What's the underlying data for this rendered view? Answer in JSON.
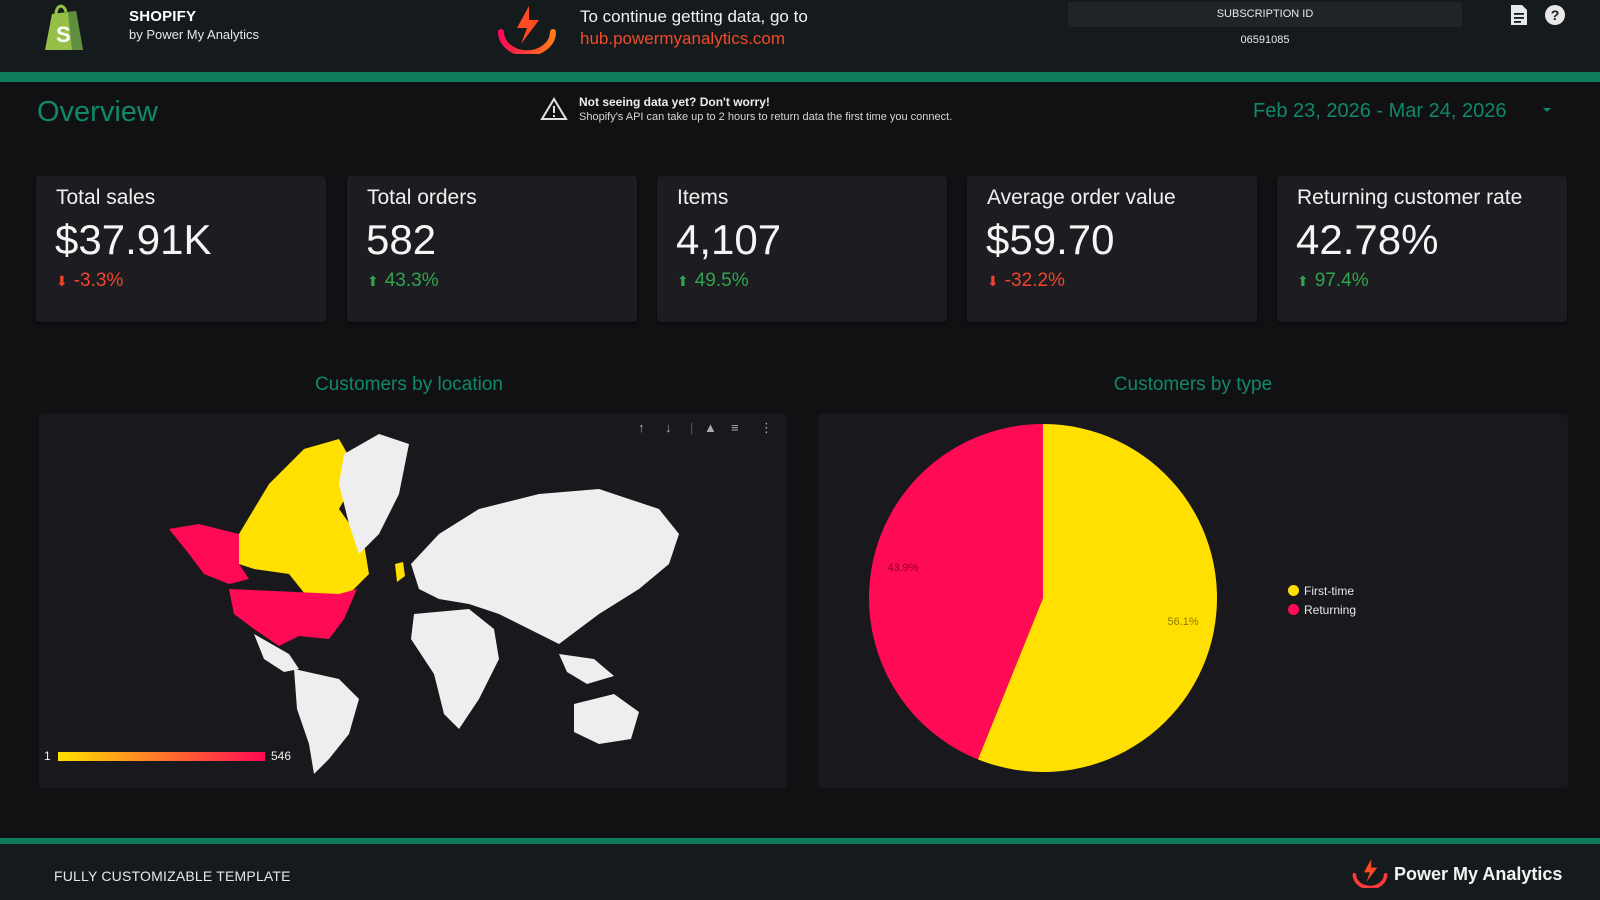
{
  "header": {
    "brand_title": "SHOPIFY",
    "brand_sub": "by Power My Analytics",
    "cta_line": "To continue getting data, go to",
    "cta_link": "hub.powermyanalytics.com",
    "subscription_label": "SUBSCRIPTION ID",
    "subscription_id": "06591085"
  },
  "overview": {
    "title": "Overview",
    "warning_title": "Not seeing data yet? Don't worry!",
    "warning_body": "Shopify's API can take up to 2 hours to return data the first time you connect.",
    "date_range": "Feb 23, 2026 - Mar 24, 2026"
  },
  "kpis": [
    {
      "label": "Total sales",
      "value": "$37.91K",
      "delta": "-3.3%",
      "direction": "down"
    },
    {
      "label": "Total orders",
      "value": "582",
      "delta": "43.3%",
      "direction": "up"
    },
    {
      "label": "Items",
      "value": "4,107",
      "delta": "49.5%",
      "direction": "up"
    },
    {
      "label": "Average order value",
      "value": "$59.70",
      "delta": "-32.2%",
      "direction": "down"
    },
    {
      "label": "Returning customer rate",
      "value": "42.78%",
      "delta": "97.4%",
      "direction": "up"
    }
  ],
  "sections": {
    "location_title": "Customers by location",
    "type_title": "Customers by type"
  },
  "map": {
    "scale_min": "1",
    "scale_max": "546",
    "scale_colors": [
      "#ffe000",
      "#ff0a54"
    ],
    "toolbar": [
      "sort-ascending-icon",
      "sort-descending-icon",
      "warning-icon",
      "filter-icon",
      "more-vert-icon"
    ]
  },
  "chart_data": {
    "type": "pie",
    "categories": [
      "First-time",
      "Returning"
    ],
    "values": [
      56.1,
      43.9
    ],
    "labels": [
      "56.1%",
      "43.9%"
    ],
    "colors": [
      "#ffe000",
      "#ff0a54"
    ],
    "legend_position": "right"
  },
  "footer": {
    "left": "FULLY CUSTOMIZABLE TEMPLATE",
    "brand": "Power My Analytics"
  },
  "colors": {
    "accent": "#0f8a64",
    "up": "#2fa64e",
    "down": "#f0452a"
  }
}
